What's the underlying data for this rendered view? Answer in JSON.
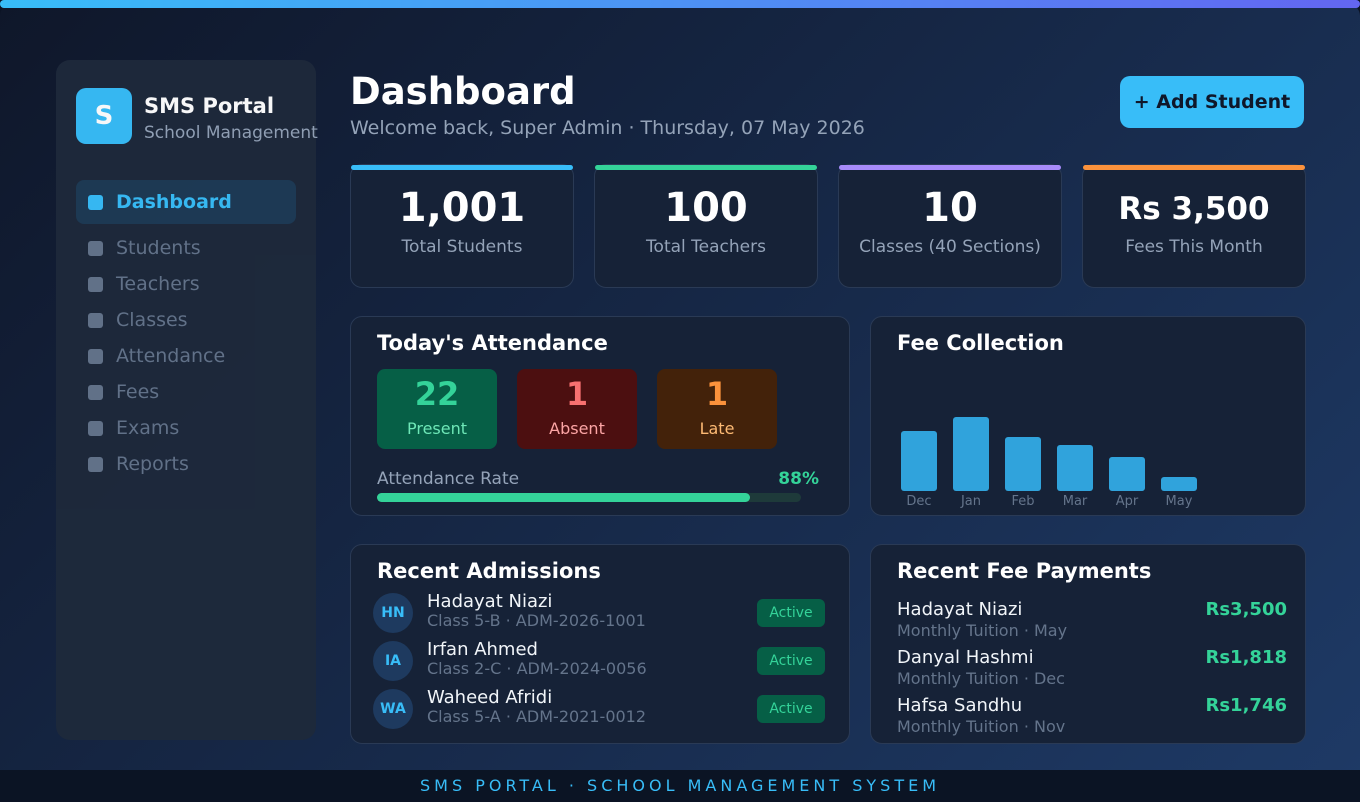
{
  "sidebar": {
    "logo": "S",
    "title": "SMS Portal",
    "subtitle": "School Management",
    "nav": [
      "Dashboard",
      "Students",
      "Teachers",
      "Classes",
      "Attendance",
      "Fees",
      "Exams",
      "Reports"
    ]
  },
  "header": {
    "title": "Dashboard",
    "subtitle": "Welcome back, Super Admin · Thursday, 07 May 2026",
    "button": "+ Add Student"
  },
  "stats": [
    {
      "value": "1,001",
      "label": "Total Students",
      "color": "#38bdf8"
    },
    {
      "value": "100",
      "label": "Total Teachers",
      "color": "#34d399"
    },
    {
      "value": "10",
      "label": "Classes (40 Sections)",
      "color": "#a78bfa"
    },
    {
      "value": "Rs 3,500",
      "label": "Fees This Month",
      "color": "#fb923c"
    }
  ],
  "attendance": {
    "title": "Today's Attendance",
    "counts": [
      {
        "value": 22,
        "label": "Present"
      },
      {
        "value": 1,
        "label": "Absent"
      },
      {
        "value": 1,
        "label": "Late"
      }
    ],
    "rate_title": "Attendance Rate",
    "rate": 88,
    "rate_label": "88%"
  },
  "fee_collection": {
    "type": "bar",
    "title": "Fee Collection",
    "categories": [
      "Dec",
      "Jan",
      "Feb",
      "Mar",
      "Apr",
      "May"
    ],
    "values": [
      60,
      74,
      54,
      46,
      34,
      14
    ],
    "ylim": [
      0,
      80
    ],
    "color": "#30a3dc"
  },
  "admissions": {
    "title": "Recent Admissions",
    "rows": [
      {
        "initials": "HN",
        "name": "Hadayat Niazi",
        "detail": "Class 5-B · ADM-2026-1001",
        "status": "Active"
      },
      {
        "initials": "IA",
        "name": "Irfan Ahmed",
        "detail": "Class 2-C · ADM-2024-0056",
        "status": "Active"
      },
      {
        "initials": "WA",
        "name": "Waheed Afridi",
        "detail": "Class 5-A · ADM-2021-0012",
        "status": "Active"
      }
    ]
  },
  "payments": {
    "title": "Recent Fee Payments",
    "rows": [
      {
        "name": "Hadayat Niazi",
        "detail": "Monthly Tuition · May",
        "amount": "Rs3,500"
      },
      {
        "name": "Danyal Hashmi",
        "detail": "Monthly Tuition · Dec",
        "amount": "Rs1,818"
      },
      {
        "name": "Hafsa Sandhu",
        "detail": "Monthly Tuition · Nov",
        "amount": "Rs1,746"
      }
    ]
  },
  "footer": "SMS PORTAL · SCHOOL MANAGEMENT SYSTEM"
}
